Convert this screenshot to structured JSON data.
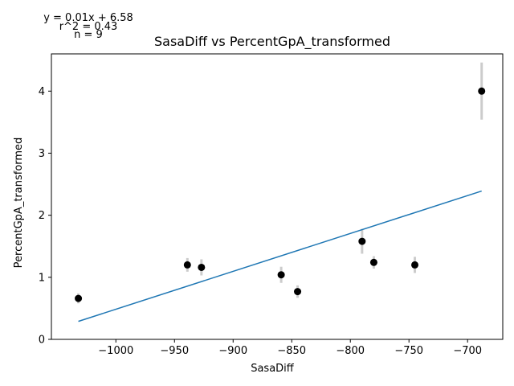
{
  "chart_data": {
    "type": "scatter",
    "title": "SasaDiff vs PercentGpA_transformed",
    "xlabel": "SasaDiff",
    "ylabel": "PercentGpA_transformed",
    "xlim": [
      -1055,
      -670
    ],
    "ylim": [
      0,
      4.6
    ],
    "xticks": [
      -1000,
      -950,
      -900,
      -850,
      -800,
      -750,
      -700
    ],
    "xtick_labels": [
      "−1000",
      "−950",
      "−900",
      "−850",
      "−800",
      "−750",
      "−700"
    ],
    "yticks": [
      0,
      1,
      2,
      3,
      4
    ],
    "ytick_labels": [
      "0",
      "1",
      "2",
      "3",
      "4"
    ],
    "points": [
      {
        "x": -1032,
        "y": 0.66,
        "err": 0.08
      },
      {
        "x": -939,
        "y": 1.2,
        "err": 0.11
      },
      {
        "x": -927,
        "y": 1.16,
        "err": 0.13
      },
      {
        "x": -859,
        "y": 1.04,
        "err": 0.13
      },
      {
        "x": -845,
        "y": 0.77,
        "err": 0.1
      },
      {
        "x": -790,
        "y": 1.58,
        "err": 0.2
      },
      {
        "x": -780,
        "y": 1.24,
        "err": 0.1
      },
      {
        "x": -745,
        "y": 1.2,
        "err": 0.13
      },
      {
        "x": -688,
        "y": 4.0,
        "err": 0.46
      }
    ],
    "fit_line": {
      "x": [
        -1032,
        -688
      ],
      "y": [
        0.29,
        2.39
      ]
    },
    "annotations": {
      "equation": "y = 0.01x + 6.58",
      "r2": "r^2 = 0.43",
      "n": "n = 9"
    },
    "colors": {
      "points": "#000000",
      "errorbars": "#cccccc",
      "fit_line": "#1f77b4"
    },
    "grid": false
  }
}
